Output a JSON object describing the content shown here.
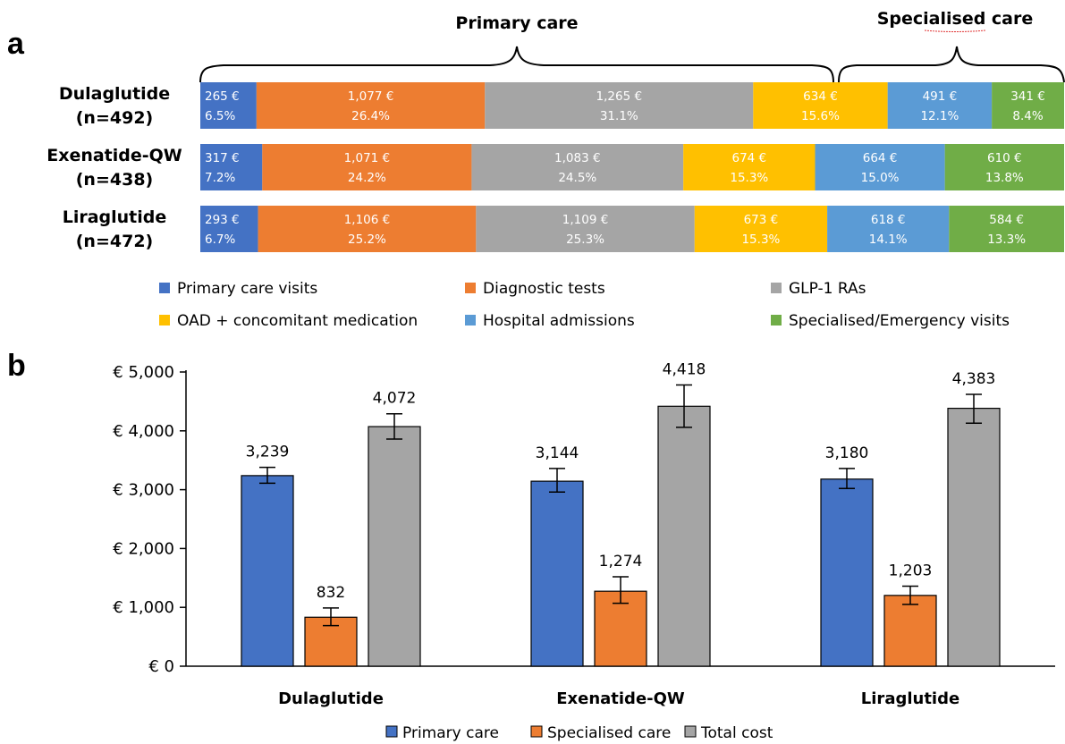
{
  "colors": {
    "primary_care_visits": "#4472c4",
    "diagnostic_tests": "#ed7d31",
    "glp1": "#a5a5a5",
    "oad": "#ffc000",
    "hospital": "#5b9bd5",
    "specialised_visits": "#70ad47",
    "primary_care": "#4472c4",
    "specialised_care": "#ed7d31",
    "total_cost": "#a5a5a5"
  },
  "chart_data": [
    {
      "panel": "a",
      "type": "bar",
      "orientation": "horizontal-stacked",
      "group_headers": [
        "Primary care",
        "Specialised care"
      ],
      "rows": [
        {
          "label_line1": "Dulaglutide",
          "label_line2": "(n=492)",
          "segments": [
            {
              "cost": "265 €",
              "pct": "6.5%",
              "value": 265,
              "share": 6.5
            },
            {
              "cost": "1,077 €",
              "pct": "26.4%",
              "value": 1077,
              "share": 26.4
            },
            {
              "cost": "1,265 €",
              "pct": "31.1%",
              "value": 1265,
              "share": 31.1
            },
            {
              "cost": "634 €",
              "pct": "15.6%",
              "value": 634,
              "share": 15.6
            },
            {
              "cost": "491 €",
              "pct": "12.1%",
              "value": 491,
              "share": 12.1
            },
            {
              "cost": "341 €",
              "pct": "8.4%",
              "value": 341,
              "share": 8.4
            }
          ]
        },
        {
          "label_line1": "Exenatide-QW",
          "label_line2": "(n=438)",
          "segments": [
            {
              "cost": "317 €",
              "pct": "7.2%",
              "value": 317,
              "share": 7.2
            },
            {
              "cost": "1,071 €",
              "pct": "24.2%",
              "value": 1071,
              "share": 24.2
            },
            {
              "cost": "1,083 €",
              "pct": "24.5%",
              "value": 1083,
              "share": 24.5
            },
            {
              "cost": "674 €",
              "pct": "15.3%",
              "value": 674,
              "share": 15.3
            },
            {
              "cost": "664 €",
              "pct": "15.0%",
              "value": 664,
              "share": 15.0
            },
            {
              "cost": "610 €",
              "pct": "13.8%",
              "value": 610,
              "share": 13.8
            }
          ]
        },
        {
          "label_line1": "Liraglutide",
          "label_line2": "(n=472)",
          "segments": [
            {
              "cost": "293 €",
              "pct": "6.7%",
              "value": 293,
              "share": 6.7
            },
            {
              "cost": "1,106 €",
              "pct": "25.2%",
              "value": 1106,
              "share": 25.2
            },
            {
              "cost": "1,109 €",
              "pct": "25.3%",
              "value": 1109,
              "share": 25.3
            },
            {
              "cost": "673 €",
              "pct": "15.3%",
              "value": 673,
              "share": 15.3
            },
            {
              "cost": "618 €",
              "pct": "14.1%",
              "value": 618,
              "share": 14.1
            },
            {
              "cost": "584 €",
              "pct": "13.3%",
              "value": 584,
              "share": 13.3
            }
          ]
        }
      ],
      "legend": [
        {
          "name": "Primary care visits",
          "color": "#4472c4"
        },
        {
          "name": "Diagnostic tests",
          "color": "#ed7d31"
        },
        {
          "name": "GLP-1 RAs",
          "color": "#a5a5a5"
        },
        {
          "name": "OAD + concomitant medication",
          "color": "#ffc000"
        },
        {
          "name": "Hospital admissions",
          "color": "#5b9bd5"
        },
        {
          "name": "Specialised/Emergency visits",
          "color": "#70ad47"
        }
      ],
      "legend_placement": "bottom"
    },
    {
      "panel": "b",
      "type": "bar",
      "orientation": "vertical-grouped",
      "categories": [
        "Dulaglutide",
        "Exenatide-QW",
        "Liraglutide"
      ],
      "series": [
        {
          "name": "Primary care",
          "color": "#4472c4",
          "values": [
            3239,
            3144,
            3180
          ],
          "labels": [
            "3,239",
            "3,144",
            "3,180"
          ],
          "err_low": [
            3110,
            2960,
            3020
          ],
          "err_high": [
            3380,
            3360,
            3360
          ]
        },
        {
          "name": "Specialised care",
          "color": "#ed7d31",
          "values": [
            832,
            1274,
            1203
          ],
          "labels": [
            "832",
            "1,274",
            "1,203"
          ],
          "err_low": [
            690,
            1070,
            1050
          ],
          "err_high": [
            990,
            1520,
            1360
          ]
        },
        {
          "name": "Total cost",
          "color": "#a5a5a5",
          "values": [
            4072,
            4418,
            4383
          ],
          "labels": [
            "4,072",
            "4,418",
            "4,383"
          ],
          "err_low": [
            3860,
            4060,
            4130
          ],
          "err_high": [
            4290,
            4780,
            4620
          ]
        }
      ],
      "ylim": [
        0,
        5000
      ],
      "yticks": [
        "€ 0",
        "€ 1,000",
        "€ 2,000",
        "€ 3,000",
        "€ 4,000",
        "€ 5,000"
      ],
      "grid": false,
      "legend_placement": "bottom"
    }
  ]
}
